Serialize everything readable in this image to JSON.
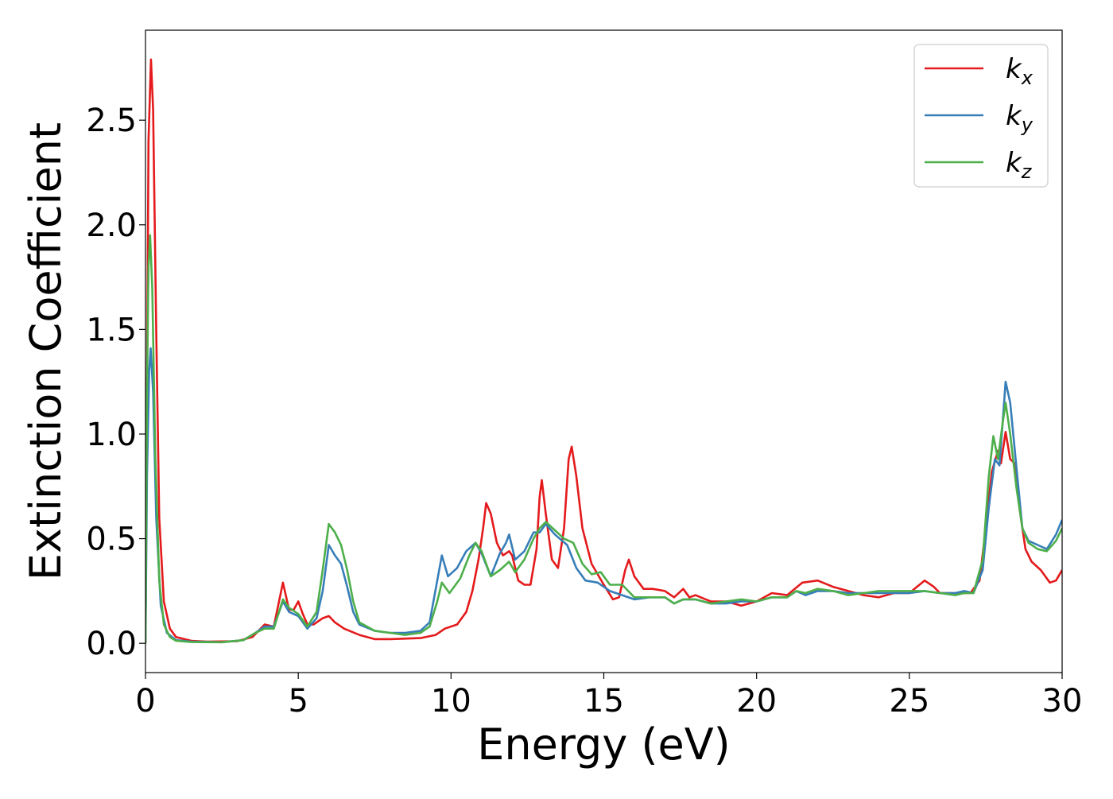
{
  "chart_data": {
    "type": "line",
    "xlabel": "Energy (eV)",
    "ylabel": "Extinction Coefficient",
    "xlim": [
      0,
      30
    ],
    "ylim": [
      -0.14,
      2.93
    ],
    "xticks": [
      0,
      5,
      10,
      15,
      20,
      25,
      30
    ],
    "xtick_labels": [
      "0",
      "5",
      "10",
      "15",
      "20",
      "25",
      "30"
    ],
    "yticks": [
      0.0,
      0.5,
      1.0,
      1.5,
      2.0,
      2.5
    ],
    "ytick_labels": [
      "0.0",
      "0.5",
      "1.0",
      "1.5",
      "2.0",
      "2.5"
    ],
    "grid": false,
    "legend_position": "top-right",
    "series": [
      {
        "name": "k_x",
        "legend_base": "k",
        "legend_sub": "x",
        "color": "#e41a1c",
        "points": [
          [
            0,
            0.0
          ],
          [
            0.05,
            1.2
          ],
          [
            0.1,
            2.4
          ],
          [
            0.18,
            2.79
          ],
          [
            0.25,
            2.55
          ],
          [
            0.35,
            1.5
          ],
          [
            0.45,
            0.6
          ],
          [
            0.6,
            0.2
          ],
          [
            0.8,
            0.07
          ],
          [
            1.0,
            0.03
          ],
          [
            1.5,
            0.012
          ],
          [
            2.0,
            0.008
          ],
          [
            3.0,
            0.01
          ],
          [
            3.5,
            0.03
          ],
          [
            3.9,
            0.09
          ],
          [
            4.2,
            0.08
          ],
          [
            4.5,
            0.29
          ],
          [
            4.7,
            0.16
          ],
          [
            4.85,
            0.16
          ],
          [
            5.0,
            0.2
          ],
          [
            5.15,
            0.14
          ],
          [
            5.3,
            0.09
          ],
          [
            5.5,
            0.09
          ],
          [
            5.8,
            0.12
          ],
          [
            6.0,
            0.13
          ],
          [
            6.2,
            0.1
          ],
          [
            6.5,
            0.07
          ],
          [
            7.0,
            0.04
          ],
          [
            7.5,
            0.02
          ],
          [
            8.0,
            0.02
          ],
          [
            9.0,
            0.025
          ],
          [
            9.5,
            0.04
          ],
          [
            9.8,
            0.07
          ],
          [
            10.2,
            0.09
          ],
          [
            10.5,
            0.15
          ],
          [
            10.7,
            0.25
          ],
          [
            10.9,
            0.4
          ],
          [
            11.05,
            0.55
          ],
          [
            11.15,
            0.67
          ],
          [
            11.3,
            0.62
          ],
          [
            11.5,
            0.48
          ],
          [
            11.7,
            0.42
          ],
          [
            11.9,
            0.44
          ],
          [
            12.0,
            0.42
          ],
          [
            12.2,
            0.3
          ],
          [
            12.4,
            0.28
          ],
          [
            12.6,
            0.28
          ],
          [
            12.8,
            0.45
          ],
          [
            12.9,
            0.7
          ],
          [
            12.97,
            0.78
          ],
          [
            13.1,
            0.62
          ],
          [
            13.3,
            0.4
          ],
          [
            13.5,
            0.36
          ],
          [
            13.7,
            0.55
          ],
          [
            13.85,
            0.88
          ],
          [
            13.95,
            0.94
          ],
          [
            14.1,
            0.8
          ],
          [
            14.3,
            0.55
          ],
          [
            14.6,
            0.38
          ],
          [
            15.0,
            0.28
          ],
          [
            15.3,
            0.21
          ],
          [
            15.5,
            0.22
          ],
          [
            15.7,
            0.35
          ],
          [
            15.82,
            0.4
          ],
          [
            16.0,
            0.32
          ],
          [
            16.3,
            0.26
          ],
          [
            16.6,
            0.26
          ],
          [
            17.0,
            0.25
          ],
          [
            17.3,
            0.22
          ],
          [
            17.6,
            0.26
          ],
          [
            17.8,
            0.22
          ],
          [
            18.0,
            0.23
          ],
          [
            18.5,
            0.2
          ],
          [
            19.0,
            0.2
          ],
          [
            19.5,
            0.18
          ],
          [
            20.0,
            0.2
          ],
          [
            20.5,
            0.24
          ],
          [
            21.0,
            0.23
          ],
          [
            21.5,
            0.29
          ],
          [
            22.0,
            0.3
          ],
          [
            22.5,
            0.27
          ],
          [
            23.0,
            0.25
          ],
          [
            23.5,
            0.23
          ],
          [
            24.0,
            0.22
          ],
          [
            24.5,
            0.24
          ],
          [
            25.0,
            0.24
          ],
          [
            25.5,
            0.3
          ],
          [
            25.8,
            0.27
          ],
          [
            26.0,
            0.24
          ],
          [
            26.5,
            0.24
          ],
          [
            27.0,
            0.24
          ],
          [
            27.3,
            0.3
          ],
          [
            27.5,
            0.55
          ],
          [
            27.7,
            0.82
          ],
          [
            27.9,
            0.92
          ],
          [
            28.0,
            0.86
          ],
          [
            28.15,
            1.01
          ],
          [
            28.3,
            0.88
          ],
          [
            28.45,
            0.86
          ],
          [
            28.6,
            0.65
          ],
          [
            28.8,
            0.45
          ],
          [
            29.0,
            0.39
          ],
          [
            29.3,
            0.35
          ],
          [
            29.6,
            0.29
          ],
          [
            29.8,
            0.3
          ],
          [
            30.0,
            0.35
          ]
        ]
      },
      {
        "name": "k_y",
        "legend_base": "k",
        "legend_sub": "y",
        "color": "#377eb8",
        "points": [
          [
            0,
            0.0
          ],
          [
            0.05,
            0.8
          ],
          [
            0.12,
            1.3
          ],
          [
            0.17,
            1.41
          ],
          [
            0.25,
            1.2
          ],
          [
            0.35,
            0.6
          ],
          [
            0.5,
            0.18
          ],
          [
            0.7,
            0.05
          ],
          [
            1.0,
            0.015
          ],
          [
            1.5,
            0.008
          ],
          [
            2.5,
            0.005
          ],
          [
            3.2,
            0.015
          ],
          [
            3.6,
            0.05
          ],
          [
            3.9,
            0.08
          ],
          [
            4.2,
            0.08
          ],
          [
            4.5,
            0.2
          ],
          [
            4.7,
            0.15
          ],
          [
            5.0,
            0.13
          ],
          [
            5.3,
            0.07
          ],
          [
            5.6,
            0.12
          ],
          [
            5.8,
            0.25
          ],
          [
            6.0,
            0.47
          ],
          [
            6.2,
            0.42
          ],
          [
            6.4,
            0.38
          ],
          [
            6.6,
            0.27
          ],
          [
            6.8,
            0.15
          ],
          [
            7.0,
            0.09
          ],
          [
            7.5,
            0.06
          ],
          [
            8.0,
            0.05
          ],
          [
            8.5,
            0.05
          ],
          [
            9.0,
            0.06
          ],
          [
            9.3,
            0.1
          ],
          [
            9.55,
            0.3
          ],
          [
            9.7,
            0.42
          ],
          [
            9.9,
            0.32
          ],
          [
            10.2,
            0.36
          ],
          [
            10.5,
            0.44
          ],
          [
            10.8,
            0.48
          ],
          [
            11.0,
            0.43
          ],
          [
            11.3,
            0.32
          ],
          [
            11.6,
            0.43
          ],
          [
            11.8,
            0.48
          ],
          [
            11.9,
            0.52
          ],
          [
            12.1,
            0.4
          ],
          [
            12.4,
            0.44
          ],
          [
            12.7,
            0.53
          ],
          [
            12.9,
            0.53
          ],
          [
            13.1,
            0.57
          ],
          [
            13.4,
            0.52
          ],
          [
            13.8,
            0.47
          ],
          [
            14.1,
            0.36
          ],
          [
            14.4,
            0.3
          ],
          [
            14.8,
            0.29
          ],
          [
            15.2,
            0.25
          ],
          [
            15.6,
            0.23
          ],
          [
            16.0,
            0.21
          ],
          [
            16.5,
            0.22
          ],
          [
            17.0,
            0.22
          ],
          [
            17.3,
            0.19
          ],
          [
            17.6,
            0.21
          ],
          [
            18.0,
            0.21
          ],
          [
            18.5,
            0.19
          ],
          [
            19.0,
            0.19
          ],
          [
            19.5,
            0.2
          ],
          [
            20.0,
            0.2
          ],
          [
            20.5,
            0.22
          ],
          [
            21.0,
            0.22
          ],
          [
            21.3,
            0.25
          ],
          [
            21.6,
            0.23
          ],
          [
            22.0,
            0.25
          ],
          [
            22.5,
            0.25
          ],
          [
            23.0,
            0.24
          ],
          [
            23.5,
            0.24
          ],
          [
            24.0,
            0.24
          ],
          [
            24.5,
            0.24
          ],
          [
            25.0,
            0.24
          ],
          [
            25.5,
            0.25
          ],
          [
            26.0,
            0.24
          ],
          [
            26.5,
            0.24
          ],
          [
            26.8,
            0.25
          ],
          [
            27.1,
            0.24
          ],
          [
            27.4,
            0.35
          ],
          [
            27.6,
            0.65
          ],
          [
            27.8,
            0.88
          ],
          [
            27.95,
            0.85
          ],
          [
            28.05,
            1.05
          ],
          [
            28.15,
            1.25
          ],
          [
            28.3,
            1.15
          ],
          [
            28.5,
            0.85
          ],
          [
            28.7,
            0.55
          ],
          [
            28.9,
            0.49
          ],
          [
            29.2,
            0.47
          ],
          [
            29.5,
            0.45
          ],
          [
            29.8,
            0.52
          ],
          [
            30.0,
            0.59
          ]
        ]
      },
      {
        "name": "k_z",
        "legend_base": "k",
        "legend_sub": "z",
        "color": "#4daf4a",
        "points": [
          [
            0,
            0.0
          ],
          [
            0.05,
            1.2
          ],
          [
            0.1,
            1.8
          ],
          [
            0.15,
            1.95
          ],
          [
            0.22,
            1.7
          ],
          [
            0.32,
            0.9
          ],
          [
            0.45,
            0.3
          ],
          [
            0.6,
            0.09
          ],
          [
            0.8,
            0.03
          ],
          [
            1.0,
            0.012
          ],
          [
            1.5,
            0.006
          ],
          [
            2.5,
            0.005
          ],
          [
            3.2,
            0.015
          ],
          [
            3.6,
            0.05
          ],
          [
            3.9,
            0.07
          ],
          [
            4.2,
            0.07
          ],
          [
            4.5,
            0.21
          ],
          [
            4.7,
            0.17
          ],
          [
            5.0,
            0.14
          ],
          [
            5.3,
            0.08
          ],
          [
            5.6,
            0.15
          ],
          [
            5.8,
            0.35
          ],
          [
            6.0,
            0.57
          ],
          [
            6.2,
            0.53
          ],
          [
            6.4,
            0.47
          ],
          [
            6.6,
            0.35
          ],
          [
            6.8,
            0.2
          ],
          [
            7.0,
            0.1
          ],
          [
            7.5,
            0.06
          ],
          [
            8.0,
            0.05
          ],
          [
            8.5,
            0.04
          ],
          [
            9.0,
            0.05
          ],
          [
            9.3,
            0.08
          ],
          [
            9.55,
            0.2
          ],
          [
            9.7,
            0.29
          ],
          [
            9.95,
            0.24
          ],
          [
            10.3,
            0.31
          ],
          [
            10.6,
            0.42
          ],
          [
            10.8,
            0.48
          ],
          [
            11.0,
            0.44
          ],
          [
            11.3,
            0.32
          ],
          [
            11.6,
            0.35
          ],
          [
            11.9,
            0.39
          ],
          [
            12.1,
            0.34
          ],
          [
            12.4,
            0.4
          ],
          [
            12.7,
            0.5
          ],
          [
            12.9,
            0.55
          ],
          [
            13.1,
            0.58
          ],
          [
            13.4,
            0.54
          ],
          [
            13.7,
            0.5
          ],
          [
            14.0,
            0.48
          ],
          [
            14.3,
            0.38
          ],
          [
            14.6,
            0.33
          ],
          [
            14.9,
            0.34
          ],
          [
            15.2,
            0.28
          ],
          [
            15.6,
            0.28
          ],
          [
            16.0,
            0.22
          ],
          [
            16.5,
            0.22
          ],
          [
            17.0,
            0.22
          ],
          [
            17.3,
            0.19
          ],
          [
            17.6,
            0.21
          ],
          [
            18.0,
            0.21
          ],
          [
            18.5,
            0.19
          ],
          [
            19.0,
            0.2
          ],
          [
            19.5,
            0.21
          ],
          [
            20.0,
            0.2
          ],
          [
            20.5,
            0.22
          ],
          [
            21.0,
            0.22
          ],
          [
            21.3,
            0.25
          ],
          [
            21.6,
            0.24
          ],
          [
            22.0,
            0.26
          ],
          [
            22.5,
            0.25
          ],
          [
            23.0,
            0.23
          ],
          [
            23.5,
            0.24
          ],
          [
            24.0,
            0.25
          ],
          [
            24.5,
            0.25
          ],
          [
            25.0,
            0.25
          ],
          [
            25.5,
            0.25
          ],
          [
            26.0,
            0.24
          ],
          [
            26.5,
            0.23
          ],
          [
            26.8,
            0.24
          ],
          [
            27.1,
            0.24
          ],
          [
            27.4,
            0.4
          ],
          [
            27.6,
            0.8
          ],
          [
            27.75,
            0.99
          ],
          [
            27.9,
            0.88
          ],
          [
            28.05,
            1.05
          ],
          [
            28.15,
            1.15
          ],
          [
            28.3,
            1.0
          ],
          [
            28.5,
            0.75
          ],
          [
            28.7,
            0.55
          ],
          [
            28.9,
            0.48
          ],
          [
            29.2,
            0.45
          ],
          [
            29.5,
            0.44
          ],
          [
            29.8,
            0.49
          ],
          [
            30.0,
            0.55
          ]
        ]
      }
    ]
  }
}
